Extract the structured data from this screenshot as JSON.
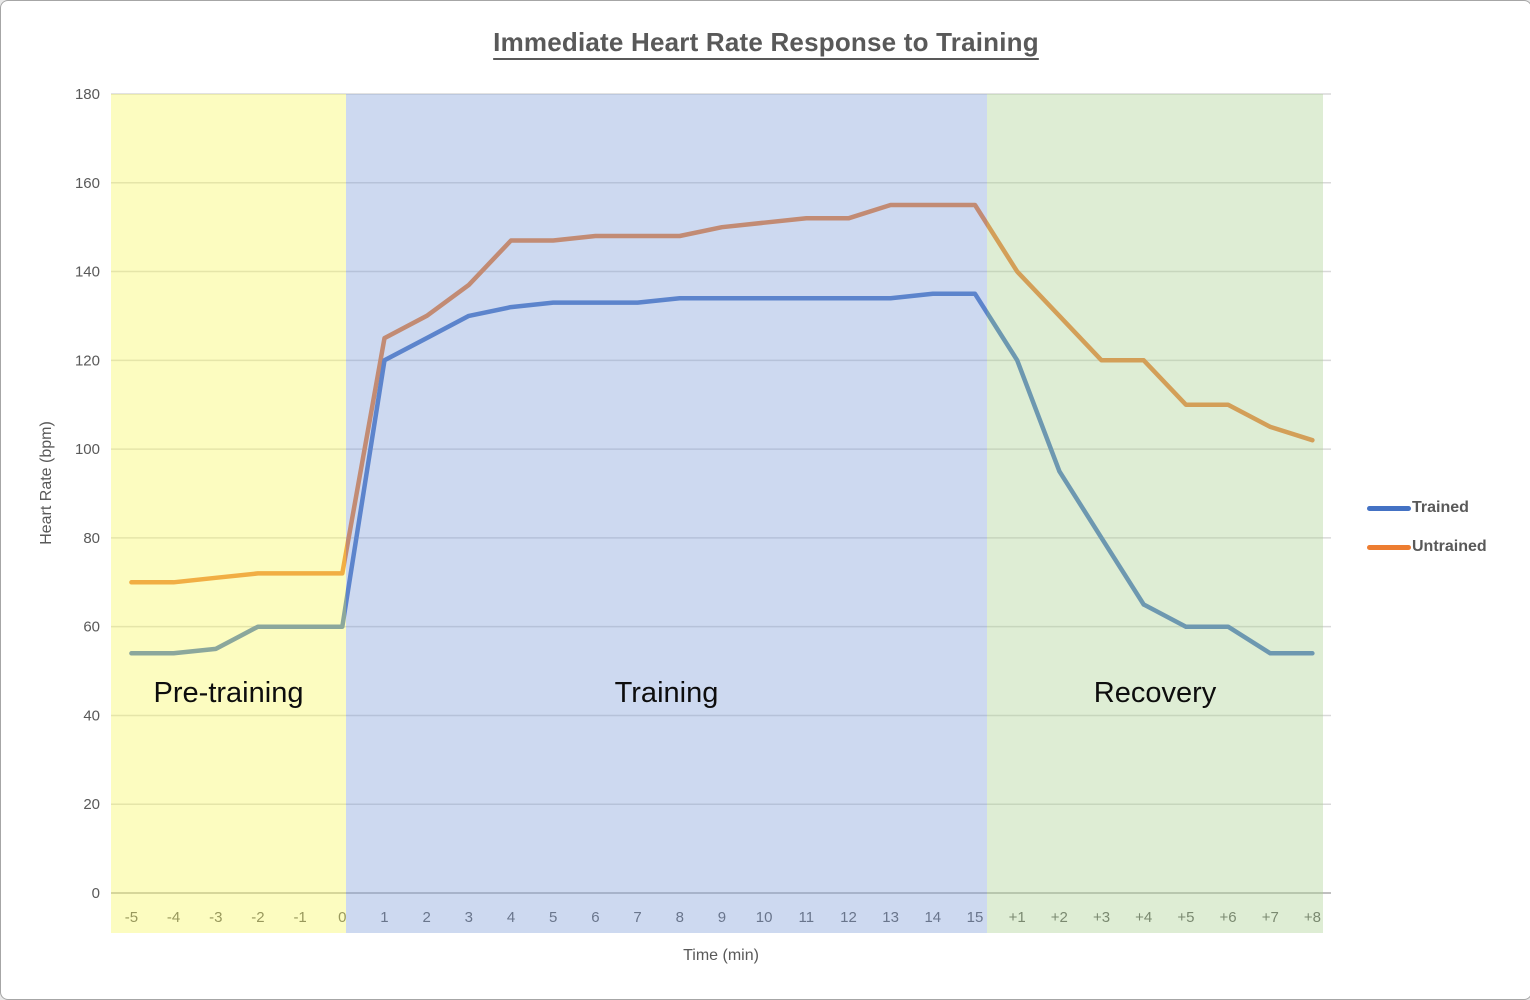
{
  "chart_data": {
    "type": "line",
    "title": "Immediate Heart Rate Response to Training",
    "xlabel": "Time (min)",
    "ylabel": "Heart Rate (bpm)",
    "ylim": [
      0,
      180
    ],
    "ytick_step": 20,
    "grid": true,
    "legend_position": "right",
    "label_color": "#595959",
    "gridline_color": "#D9D9D9",
    "axis_line_color": "#ABABAB",
    "region_label_color": "#0D0D0D",
    "categories": [
      "-5",
      "-4",
      "-3",
      "-2",
      "-1",
      "0",
      "1",
      "2",
      "3",
      "4",
      "5",
      "6",
      "7",
      "8",
      "9",
      "10",
      "11",
      "12",
      "13",
      "14",
      "15",
      "+1",
      "+2",
      "+3",
      "+4",
      "+5",
      "+6",
      "+7",
      "+8"
    ],
    "series": [
      {
        "name": "Trained",
        "color": "#4472C4",
        "values": [
          54,
          54,
          55,
          60,
          60,
          60,
          120,
          125,
          130,
          132,
          133,
          133,
          133,
          134,
          134,
          134,
          134,
          134,
          134,
          135,
          135,
          120,
          95,
          80,
          65,
          60,
          60,
          54,
          54
        ]
      },
      {
        "name": "Untrained",
        "color": "#ED7D31",
        "values": [
          70,
          70,
          71,
          72,
          72,
          72,
          125,
          130,
          137,
          147,
          147,
          148,
          148,
          148,
          150,
          151,
          152,
          152,
          155,
          155,
          155,
          140,
          130,
          120,
          120,
          110,
          110,
          105,
          102
        ]
      }
    ],
    "regions": [
      {
        "label": "Pre-training",
        "from": "-5",
        "to": "0",
        "overlay_color": "rgba(248,248,97,0.4)"
      },
      {
        "label": "Training",
        "from": "1",
        "to": "15",
        "overlay_color": "rgba(130,160,218,0.4)"
      },
      {
        "label": "Recovery",
        "from": "+1",
        "to": "+8",
        "overlay_color": "rgba(172,210,147,0.4)"
      }
    ]
  }
}
